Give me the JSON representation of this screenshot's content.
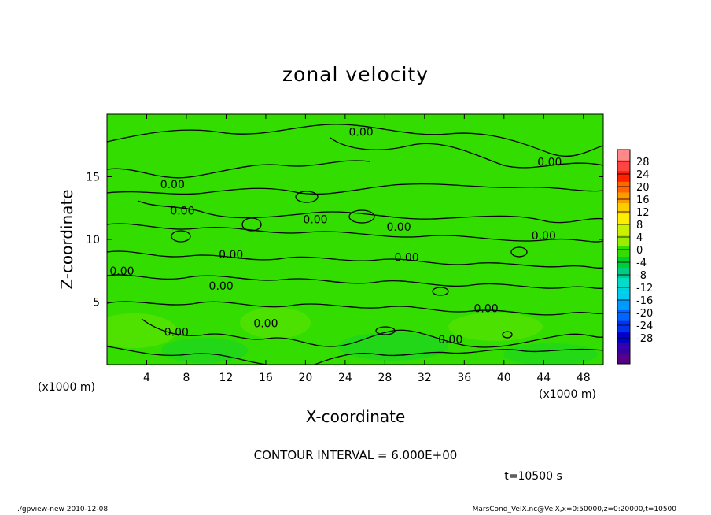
{
  "chart_data": {
    "type": "heatmap",
    "title": "zonal velocity",
    "xlabel": "X-coordinate",
    "ylabel": "Z-coordinate",
    "x_unit_label": "(x1000 m)",
    "y_unit_label": "(x1000 m)",
    "xlim": [
      0,
      50
    ],
    "ylim": [
      0,
      20
    ],
    "x_ticks": [
      4,
      8,
      12,
      16,
      20,
      24,
      28,
      32,
      36,
      40,
      44,
      48
    ],
    "y_ticks": [
      5,
      10,
      15
    ],
    "colorbar": {
      "labels": [
        28,
        24,
        20,
        16,
        12,
        8,
        4,
        0,
        -4,
        -8,
        -12,
        -16,
        -20,
        -24,
        -28
      ],
      "colors": [
        "#ff8888",
        "#ff4444",
        "#ff2200",
        "#ff6600",
        "#ff9900",
        "#ffcc00",
        "#ffee00",
        "#ccf000",
        "#99ee00",
        "#33dd00",
        "#00cc33",
        "#00cc88",
        "#00ddcc",
        "#00ccee",
        "#0099ff",
        "#0066ff",
        "#0033ee",
        "#0000cc",
        "#3300aa",
        "#550088"
      ]
    },
    "field_color": "#33dd00",
    "contour_labels": [
      {
        "text": "0.00",
        "x": 25.6,
        "z": 18.6
      },
      {
        "text": "0.00",
        "x": 44.6,
        "z": 16.2
      },
      {
        "text": "0.00",
        "x": 6.6,
        "z": 14.4
      },
      {
        "text": "0.00",
        "x": 7.6,
        "z": 12.3
      },
      {
        "text": "0.00",
        "x": 21.0,
        "z": 11.6
      },
      {
        "text": "0.00",
        "x": 29.4,
        "z": 11.0
      },
      {
        "text": "0.00",
        "x": 44.0,
        "z": 10.3
      },
      {
        "text": "0.00",
        "x": 12.5,
        "z": 8.8
      },
      {
        "text": "0.00",
        "x": 30.2,
        "z": 8.6
      },
      {
        "text": "0.00",
        "x": 1.5,
        "z": 7.5
      },
      {
        "text": "0.00",
        "x": 11.5,
        "z": 6.3
      },
      {
        "text": "0.00",
        "x": 38.2,
        "z": 4.5
      },
      {
        "text": "0.00",
        "x": 16.0,
        "z": 3.3
      },
      {
        "text": "0.00",
        "x": 7.0,
        "z": 2.6
      },
      {
        "text": "0.00",
        "x": 34.6,
        "z": 2.0
      }
    ],
    "contour_interval_text": "CONTOUR INTERVAL = 6.000E+00",
    "time_text": "t=10500 s"
  },
  "footer": {
    "left": "./gpview-new  2010-12-08",
    "right": "MarsCond_VelX.nc@VelX,x=0:50000,z=0:20000,t=10500"
  }
}
